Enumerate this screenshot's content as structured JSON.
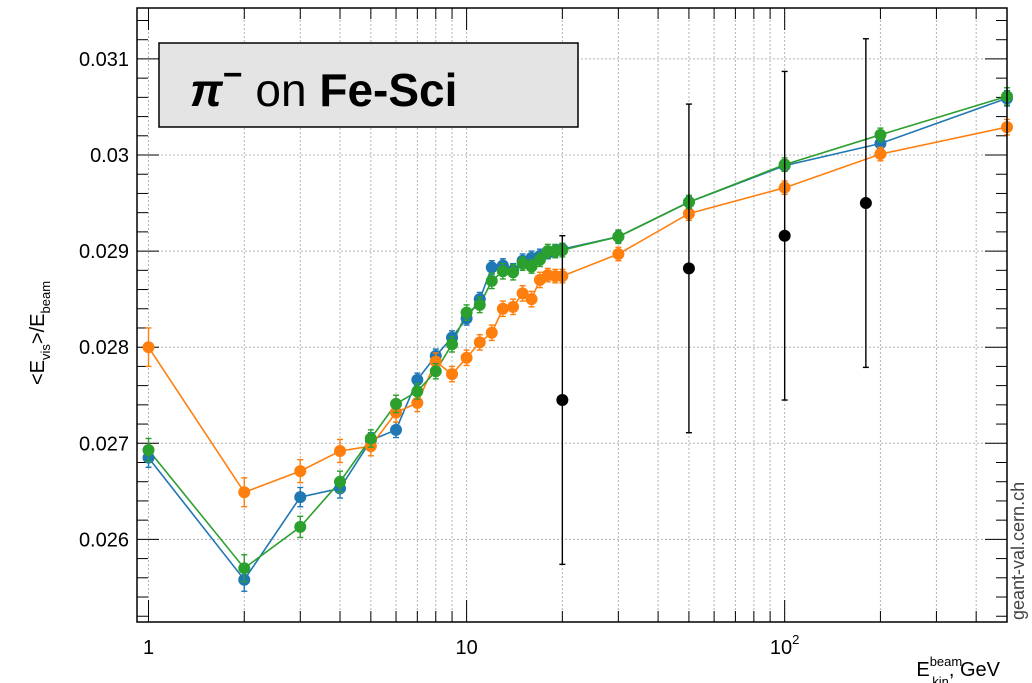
{
  "chart_data": {
    "type": "scatter",
    "title_parts": {
      "particle": "π",
      "charge": "−",
      "middle": " on ",
      "target": "Fe-Sci"
    },
    "xlabel": {
      "main": "E",
      "sup": "beam",
      "sub": "kin",
      "suffix": ", GeV"
    },
    "ylabel": {
      "open": "<E",
      "sub1": "vis",
      "mid": ">/E",
      "sub2": "beam"
    },
    "x_scale": "log",
    "xlim": [
      0.92,
      500
    ],
    "ylim": [
      0.02514,
      0.03153
    ],
    "grid": true,
    "x_tick_labels": [
      {
        "x": 1,
        "base": "1",
        "sup": ""
      },
      {
        "x": 10,
        "base": "10",
        "sup": ""
      },
      {
        "x": 100,
        "base": "10",
        "sup": "2"
      }
    ],
    "y_ticks": [
      {
        "y": 0.026,
        "label": "0.026"
      },
      {
        "y": 0.027,
        "label": "0.027"
      },
      {
        "y": 0.028,
        "label": "0.028"
      },
      {
        "y": 0.029,
        "label": "0.029"
      },
      {
        "y": 0.03,
        "label": "0.03"
      },
      {
        "y": 0.031,
        "label": "0.031"
      }
    ],
    "series": [
      {
        "color": "#1f77b4",
        "x": [
          1,
          2,
          3,
          4,
          5,
          6,
          7,
          8,
          9,
          10,
          11,
          12,
          13,
          14,
          15,
          16,
          17,
          18,
          19,
          20,
          30,
          50,
          100,
          200,
          500
        ],
        "y": [
          0.02685,
          0.02558,
          0.02644,
          0.02653,
          0.02703,
          0.02714,
          0.02766,
          0.02791,
          0.0281,
          0.0283,
          0.0285,
          0.02883,
          0.02885,
          0.0288,
          0.0289,
          0.02893,
          0.02895,
          0.02898,
          0.029,
          0.02902,
          0.02915,
          0.02951,
          0.02989,
          0.03012,
          0.03059
        ],
        "err": [
          0.0001,
          0.00012,
          0.0001,
          0.0001,
          8e-05,
          8e-05,
          7e-05,
          7e-05,
          7e-05,
          7e-05,
          7e-05,
          7e-05,
          7e-05,
          7e-05,
          7e-05,
          7e-05,
          7e-05,
          6e-05,
          6e-05,
          6e-05,
          6e-05,
          6e-05,
          6e-05,
          6e-05,
          8e-05
        ]
      },
      {
        "color": "#ff7f0e",
        "x": [
          1,
          2,
          3,
          4,
          5,
          6,
          7,
          8,
          9,
          10,
          11,
          12,
          13,
          14,
          15,
          16,
          17,
          18,
          19,
          20,
          30,
          50,
          100,
          200,
          500
        ],
        "y": [
          0.028,
          0.02649,
          0.02671,
          0.02692,
          0.02697,
          0.02732,
          0.02742,
          0.02785,
          0.02772,
          0.02789,
          0.02805,
          0.02815,
          0.0284,
          0.02842,
          0.02856,
          0.0285,
          0.0287,
          0.02875,
          0.02874,
          0.02874,
          0.02897,
          0.02939,
          0.02966,
          0.03001,
          0.03029
        ],
        "err": [
          0.0002,
          0.00015,
          0.00012,
          0.00012,
          0.0001,
          0.0001,
          9e-05,
          9e-05,
          8e-05,
          8e-05,
          8e-05,
          8e-05,
          8e-05,
          8e-05,
          8e-05,
          8e-05,
          8e-05,
          7e-05,
          7e-05,
          7e-05,
          7e-05,
          7e-05,
          7e-05,
          7e-05,
          8e-05
        ]
      },
      {
        "color": "#2ca02c",
        "x": [
          1,
          2,
          3,
          4,
          5,
          6,
          7,
          8,
          9,
          10,
          11,
          12,
          13,
          14,
          15,
          16,
          17,
          18,
          19,
          20,
          30,
          50,
          100,
          200,
          500
        ],
        "y": [
          0.02693,
          0.0257,
          0.02613,
          0.0266,
          0.02705,
          0.02741,
          0.02754,
          0.02775,
          0.02803,
          0.02836,
          0.02844,
          0.02869,
          0.02879,
          0.02878,
          0.02887,
          0.02884,
          0.02891,
          0.029,
          0.029,
          0.02901,
          0.02915,
          0.02951,
          0.0299,
          0.03021,
          0.03061
        ],
        "err": [
          0.00012,
          0.00014,
          0.00011,
          0.00011,
          9e-05,
          9e-05,
          8e-05,
          8e-05,
          8e-05,
          8e-05,
          8e-05,
          8e-05,
          8e-05,
          8e-05,
          7e-05,
          7e-05,
          7e-05,
          7e-05,
          7e-05,
          7e-05,
          7e-05,
          7e-05,
          7e-05,
          7e-05,
          9e-05
        ]
      },
      {
        "color": "#000000",
        "connected": false,
        "x": [
          20,
          50,
          100,
          180
        ],
        "y": [
          0.02745,
          0.02882,
          0.02916,
          0.0295
        ],
        "err": [
          0.00171,
          0.00171,
          0.00171,
          0.00171
        ]
      }
    ]
  },
  "watermark": "geant-val.cern.ch"
}
